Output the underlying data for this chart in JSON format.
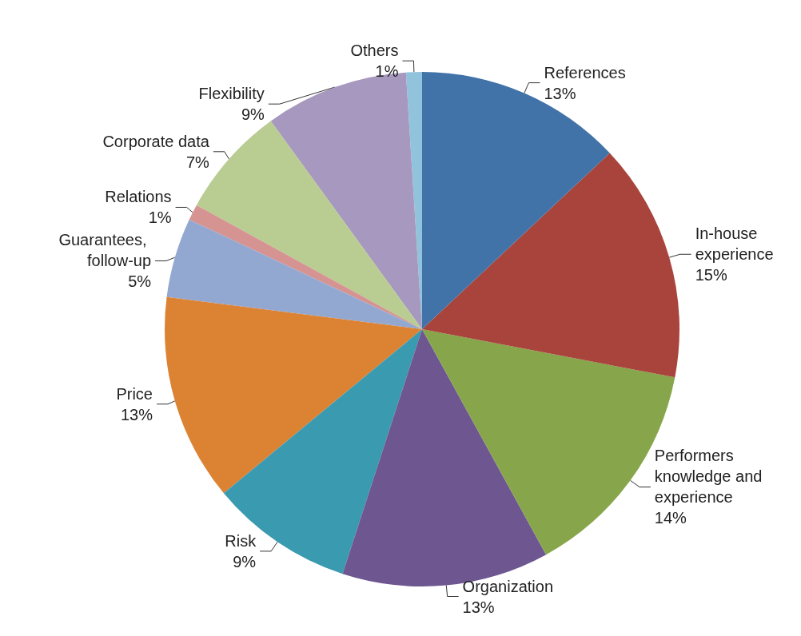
{
  "chart_data": {
    "type": "pie",
    "categories": [
      "References",
      "In-house experience",
      "Performers knowledge and experience",
      "Organization",
      "Risk",
      "Price",
      "Guarantees, follow-up",
      "Relations",
      "Corporate data",
      "Flexibility",
      "Others"
    ],
    "values": [
      13,
      15,
      14,
      13,
      9,
      13,
      5,
      1,
      7,
      9,
      1
    ],
    "value_labels": [
      "13%",
      "15%",
      "14%",
      "13%",
      "9%",
      "13%",
      "5%",
      "1%",
      "7%",
      "9%",
      "1%"
    ],
    "colors": [
      "#4273a8",
      "#a8443c",
      "#87a54a",
      "#6e5690",
      "#3a9ab0",
      "#dc8233",
      "#93a8d1",
      "#d59391",
      "#b9cc92",
      "#a698be",
      "#92c3dd"
    ],
    "legend": false
  }
}
